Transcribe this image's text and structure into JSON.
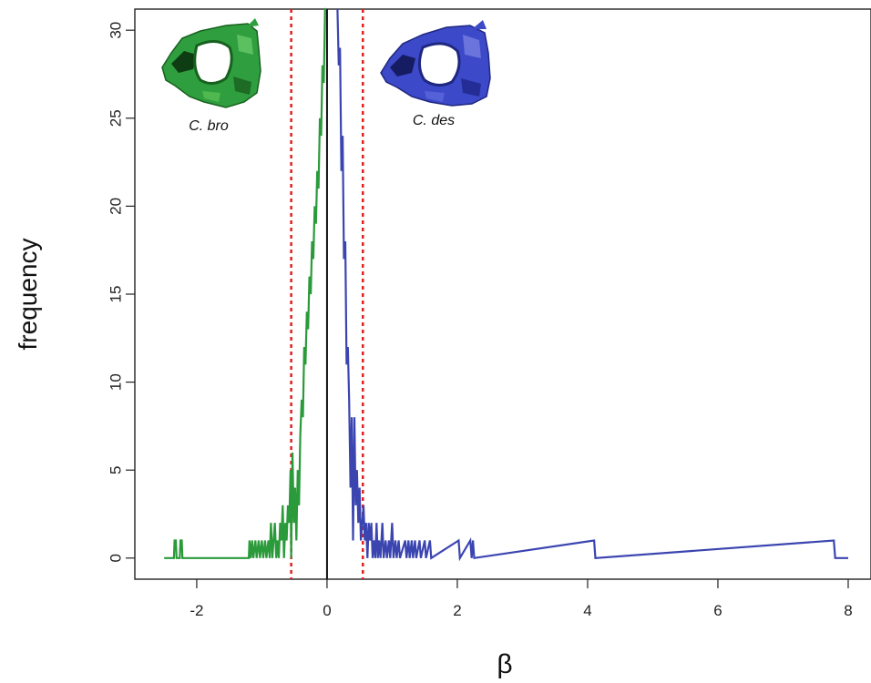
{
  "chart_data": {
    "type": "line",
    "title": "",
    "xlabel": "β",
    "ylabel": "frequency",
    "xlim": [
      -2.95,
      8.35
    ],
    "ylim": [
      -1.2,
      31.2
    ],
    "x_ticks": [
      -2,
      0,
      2,
      4,
      6,
      8
    ],
    "x_tick_labels": [
      "-2",
      "0",
      "2",
      "4",
      "6",
      "8"
    ],
    "y_ticks": [
      0,
      5,
      10,
      15,
      20,
      25,
      30
    ],
    "y_tick_labels": [
      "0",
      "5",
      "10",
      "15",
      "20",
      "25",
      "30"
    ],
    "grid": false,
    "series": [
      {
        "color": "#2a9a3a",
        "points": [
          [
            -2.5,
            0
          ],
          [
            -2.35,
            0
          ],
          [
            -2.34,
            1
          ],
          [
            -2.32,
            1
          ],
          [
            -2.31,
            0
          ],
          [
            -2.26,
            0
          ],
          [
            -2.25,
            1
          ],
          [
            -2.23,
            1
          ],
          [
            -2.22,
            0
          ],
          [
            -1.2,
            0
          ],
          [
            -1.19,
            1
          ],
          [
            -1.17,
            0
          ],
          [
            -1.15,
            1
          ],
          [
            -1.13,
            0
          ],
          [
            -1.1,
            1
          ],
          [
            -1.08,
            0
          ],
          [
            -1.05,
            1
          ],
          [
            -1.03,
            0
          ],
          [
            -1.0,
            1
          ],
          [
            -0.98,
            0
          ],
          [
            -0.95,
            1
          ],
          [
            -0.93,
            0
          ],
          [
            -0.9,
            1
          ],
          [
            -0.88,
            0
          ],
          [
            -0.86,
            2
          ],
          [
            -0.84,
            0
          ],
          [
            -0.82,
            1
          ],
          [
            -0.8,
            2
          ],
          [
            -0.78,
            0
          ],
          [
            -0.76,
            1
          ],
          [
            -0.74,
            0
          ],
          [
            -0.72,
            2
          ],
          [
            -0.7,
            1
          ],
          [
            -0.68,
            3
          ],
          [
            -0.66,
            0
          ],
          [
            -0.64,
            2
          ],
          [
            -0.62,
            1
          ],
          [
            -0.6,
            3
          ],
          [
            -0.58,
            2
          ],
          [
            -0.56,
            5
          ],
          [
            -0.55,
            0
          ],
          [
            -0.53,
            6
          ],
          [
            -0.51,
            2
          ],
          [
            -0.49,
            4
          ],
          [
            -0.47,
            1
          ],
          [
            -0.45,
            5
          ],
          [
            -0.43,
            3
          ],
          [
            -0.41,
            7
          ],
          [
            -0.39,
            9
          ],
          [
            -0.37,
            8
          ],
          [
            -0.35,
            12
          ],
          [
            -0.33,
            11
          ],
          [
            -0.31,
            14
          ],
          [
            -0.29,
            13
          ],
          [
            -0.27,
            16
          ],
          [
            -0.25,
            15
          ],
          [
            -0.23,
            18
          ],
          [
            -0.21,
            17
          ],
          [
            -0.19,
            20
          ],
          [
            -0.17,
            19
          ],
          [
            -0.15,
            22
          ],
          [
            -0.13,
            21
          ],
          [
            -0.11,
            25
          ],
          [
            -0.09,
            24
          ],
          [
            -0.07,
            28
          ],
          [
            -0.05,
            27
          ],
          [
            -0.03,
            31.2
          ],
          [
            -0.01,
            31.2
          ]
        ]
      },
      {
        "color": "#3b45b0",
        "points": [
          [
            0.16,
            31.2
          ],
          [
            0.18,
            28
          ],
          [
            0.2,
            29
          ],
          [
            0.22,
            22
          ],
          [
            0.24,
            24
          ],
          [
            0.26,
            17
          ],
          [
            0.28,
            18
          ],
          [
            0.3,
            11
          ],
          [
            0.32,
            12
          ],
          [
            0.34,
            9
          ],
          [
            0.36,
            4
          ],
          [
            0.38,
            8
          ],
          [
            0.4,
            1
          ],
          [
            0.42,
            8
          ],
          [
            0.44,
            3
          ],
          [
            0.46,
            5
          ],
          [
            0.48,
            2
          ],
          [
            0.5,
            4
          ],
          [
            0.52,
            1
          ],
          [
            0.54,
            2
          ],
          [
            0.56,
            3
          ],
          [
            0.58,
            1
          ],
          [
            0.6,
            2
          ],
          [
            0.62,
            0
          ],
          [
            0.64,
            2
          ],
          [
            0.66,
            1
          ],
          [
            0.68,
            2
          ],
          [
            0.7,
            0
          ],
          [
            0.72,
            1
          ],
          [
            0.74,
            0
          ],
          [
            0.76,
            2
          ],
          [
            0.78,
            0
          ],
          [
            0.8,
            1
          ],
          [
            0.82,
            0
          ],
          [
            0.85,
            2
          ],
          [
            0.87,
            0
          ],
          [
            0.9,
            1
          ],
          [
            0.92,
            0
          ],
          [
            0.95,
            1
          ],
          [
            0.97,
            0
          ],
          [
            1.0,
            2
          ],
          [
            1.02,
            0
          ],
          [
            1.05,
            1
          ],
          [
            1.07,
            0
          ],
          [
            1.1,
            1
          ],
          [
            1.12,
            0
          ],
          [
            1.2,
            1
          ],
          [
            1.22,
            0
          ],
          [
            1.25,
            1
          ],
          [
            1.27,
            0
          ],
          [
            1.3,
            1
          ],
          [
            1.32,
            0
          ],
          [
            1.35,
            1
          ],
          [
            1.37,
            0
          ],
          [
            1.42,
            1
          ],
          [
            1.44,
            0
          ],
          [
            1.5,
            1
          ],
          [
            1.52,
            0
          ],
          [
            1.58,
            1
          ],
          [
            1.6,
            0
          ],
          [
            2.02,
            1
          ],
          [
            2.04,
            0
          ],
          [
            2.2,
            1
          ],
          [
            2.22,
            0
          ],
          [
            2.24,
            1
          ],
          [
            2.26,
            0
          ],
          [
            4.1,
            1
          ],
          [
            4.12,
            0
          ],
          [
            7.78,
            1
          ],
          [
            7.8,
            0
          ],
          [
            8.0,
            0
          ]
        ]
      }
    ],
    "vlines": [
      {
        "x": 0,
        "color": "#111111",
        "style": "solid"
      },
      {
        "x": -0.55,
        "color": "#e02020",
        "style": "dotted"
      },
      {
        "x": 0.55,
        "color": "#e02020",
        "style": "dotted"
      }
    ],
    "annotations": [
      {
        "text": "C. bro",
        "color": "#2a9a3a"
      },
      {
        "text": "C. des",
        "color": "#3b45b0"
      }
    ]
  }
}
